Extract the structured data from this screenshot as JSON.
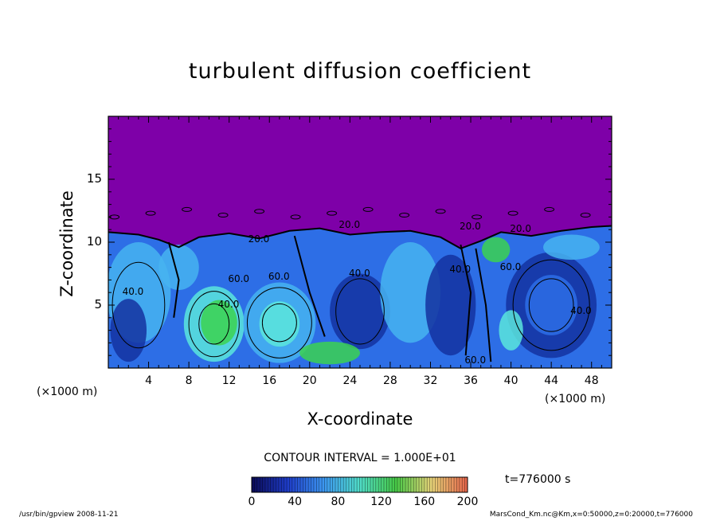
{
  "chart_data": {
    "type": "heatmap",
    "title": "turbulent diffusion coefficient",
    "xlabel": "X-coordinate",
    "ylabel": "Z-coordinate",
    "x_unit_left": "(×1000 m)",
    "x_unit_right": "(×1000 m)",
    "xlim": [
      0,
      50
    ],
    "ylim": [
      0,
      20
    ],
    "xticks": [
      "4",
      "8",
      "12",
      "16",
      "20",
      "24",
      "28",
      "32",
      "36",
      "40",
      "44",
      "48"
    ],
    "xtick_values": [
      4,
      8,
      12,
      16,
      20,
      24,
      28,
      32,
      36,
      40,
      44,
      48
    ],
    "yticks": [
      "5",
      "10",
      "15"
    ],
    "ytick_values": [
      5,
      10,
      15
    ],
    "contour_interval_text": "CONTOUR INTERVAL = 1.000E+01",
    "contour_labels": [
      "20.0",
      "20.0",
      "20.0",
      "20.0",
      "40.0",
      "40.0",
      "40.0",
      "40.0",
      "40.0",
      "60.0",
      "60.0",
      "60.0",
      "60.0"
    ],
    "colorbar": {
      "ticks": [
        "0",
        "40",
        "80",
        "120",
        "160",
        "200"
      ],
      "tick_values": [
        0,
        40,
        80,
        120,
        160,
        200
      ],
      "range": [
        0,
        200
      ],
      "colors": [
        "#0a0a55",
        "#1e3cc8",
        "#3c96f0",
        "#50dcc8",
        "#46c846",
        "#e6d278",
        "#e6644b"
      ]
    },
    "field_colors": {
      "above_boundary": "#7e00a8",
      "deep": "#1432a0",
      "mid": "#2d6ee6",
      "light": "#46b4f0",
      "cyan": "#5ae6dc",
      "green": "#3cd250"
    },
    "time_label": "t=776000  s"
  },
  "footer": {
    "left": "/usr/bin/gpview   2008-11-21",
    "right": "MarsCond_Km.nc@Km,x=0:50000,z=0:20000,t=776000"
  }
}
